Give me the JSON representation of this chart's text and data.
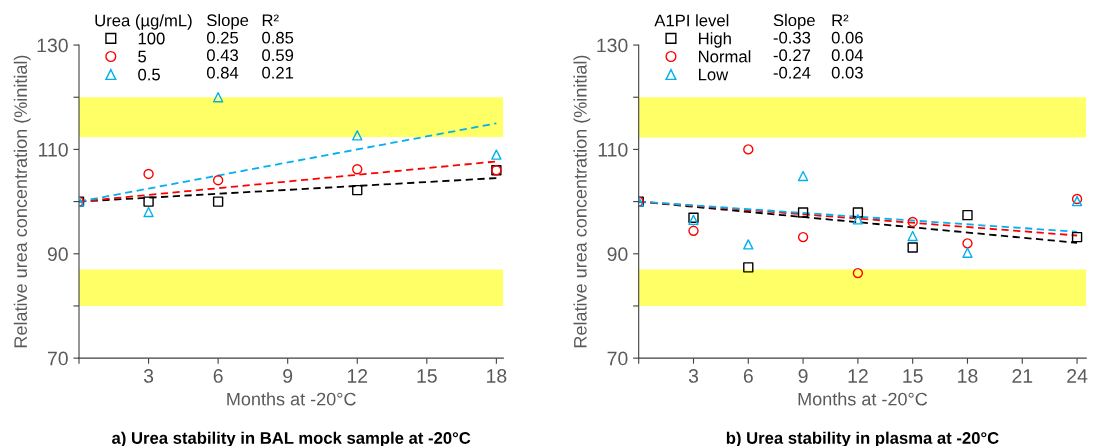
{
  "chart_data": [
    {
      "type": "scatter",
      "title": "a) Urea stability in BAL mock sample at -20°C",
      "xlabel": "Months at -20°C",
      "ylabel": "Relative urea concentration (%initial)",
      "legend_title": "Urea (µg/mL)",
      "legend": "top left",
      "xlim": [
        0,
        18.3
      ],
      "xticks": [
        {
          "value": 0,
          "label": null
        },
        3,
        6,
        9,
        12,
        15,
        18
      ],
      "ylim": [
        70,
        130
      ],
      "yticks": [
        70,
        {
          "value": 80,
          "label": null
        },
        90,
        {
          "value": 100,
          "label": null
        },
        110,
        {
          "value": 120,
          "label": null
        },
        130
      ],
      "grid": false,
      "bands": [
        {
          "axis": "y",
          "from": 112.4,
          "to": 120,
          "color": "#ffff00"
        },
        {
          "axis": "y",
          "from": 87,
          "to": 80,
          "color": "#ffff00"
        }
      ],
      "annotations": [
        "Slope",
        "R²",
        "0.25",
        "0.85",
        "0.43",
        "0.59",
        "0.84",
        "0.21"
      ],
      "series": [
        {
          "name": "100",
          "marker": "square",
          "color": "#000000",
          "x": [
            0,
            3,
            6,
            12,
            18
          ],
          "values": [
            100,
            100,
            100,
            102.2,
            106
          ]
        },
        {
          "name": "5",
          "marker": "circle",
          "color": "#ff0000",
          "x": [
            0,
            3,
            6,
            12,
            18
          ],
          "values": [
            100,
            105.3,
            104.1,
            106.2,
            106
          ]
        },
        {
          "name": "0.5",
          "marker": "triangle",
          "color": "#00b0f0",
          "x": [
            0,
            3,
            6,
            12,
            18
          ],
          "values": [
            100,
            98,
            120,
            112.7,
            109
          ]
        },
        {
          "type": "line",
          "line_style": "dashed",
          "color": "#000000",
          "x": [
            0,
            18
          ],
          "values": [
            100,
            104.5
          ]
        },
        {
          "type": "line",
          "line_style": "dashed",
          "color": "#ff0000",
          "x": [
            0,
            18
          ],
          "values": [
            100,
            107.7
          ]
        },
        {
          "type": "line",
          "line_style": "dashed",
          "color": "#00b0f0",
          "x": [
            0,
            18
          ],
          "values": [
            100,
            115
          ]
        }
      ]
    },
    {
      "type": "scatter",
      "title": "b) Urea stability in plasma at -20°C",
      "xlabel": "Months at -20°C",
      "ylabel": "Relative urea concentration (%initial)",
      "legend_title": "A1PI level",
      "legend": "top left",
      "xlim": [
        0,
        24.5
      ],
      "xticks": [
        {
          "value": 0,
          "label": null
        },
        3,
        6,
        9,
        12,
        15,
        18,
        21,
        24
      ],
      "ylim": [
        70,
        130
      ],
      "yticks": [
        70,
        {
          "value": 80,
          "label": null
        },
        90,
        {
          "value": 100,
          "label": null
        },
        110,
        {
          "value": 120,
          "label": null
        },
        130
      ],
      "grid": false,
      "bands": [
        {
          "axis": "y",
          "from": 112.3,
          "to": 120,
          "color": "#ffff00"
        },
        {
          "axis": "y",
          "from": 87,
          "to": 80,
          "color": "#ffff00"
        }
      ],
      "annotations": [
        "Slope",
        "R²",
        "-0.33",
        "0.06",
        "-0.27",
        "0.04",
        "-0.24",
        "0.03"
      ],
      "series": [
        {
          "name": "High",
          "marker": "square",
          "color": "#000000",
          "x": [
            0,
            3,
            6,
            9,
            12,
            15,
            18,
            24
          ],
          "values": [
            100,
            96.9,
            87.4,
            97.9,
            97.9,
            91.2,
            97.4,
            93.2
          ]
        },
        {
          "name": "Normal",
          "marker": "circle",
          "color": "#ff0000",
          "x": [
            0,
            3,
            6,
            9,
            12,
            15,
            18,
            24
          ],
          "values": [
            100,
            94.4,
            110,
            93.2,
            86.3,
            96.1,
            92,
            100.5
          ]
        },
        {
          "name": "Low",
          "marker": "triangle",
          "color": "#00b0f0",
          "x": [
            0,
            3,
            6,
            9,
            12,
            15,
            18,
            24
          ],
          "values": [
            100,
            96.5,
            91.8,
            104.9,
            96.6,
            93.4,
            90.2,
            100.1
          ]
        },
        {
          "type": "line",
          "line_style": "dashed",
          "color": "#000000",
          "x": [
            0,
            24
          ],
          "values": [
            100,
            92.1
          ]
        },
        {
          "type": "line",
          "line_style": "dashed",
          "color": "#ff0000",
          "x": [
            0,
            24
          ],
          "values": [
            100,
            93.5
          ]
        },
        {
          "type": "line",
          "line_style": "dashed",
          "color": "#00b0f0",
          "x": [
            0,
            24
          ],
          "values": [
            100,
            94.2
          ]
        }
      ]
    }
  ]
}
